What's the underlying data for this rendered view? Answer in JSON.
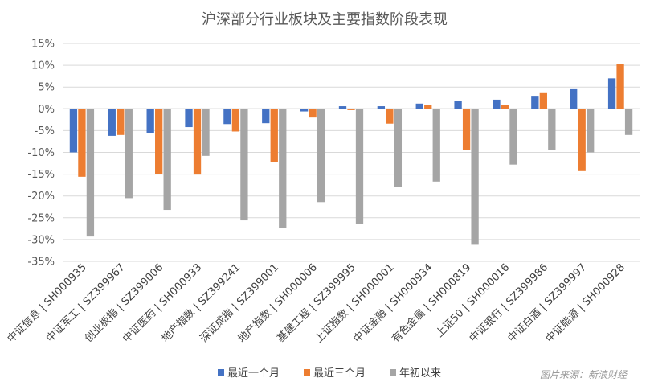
{
  "chart_data": {
    "type": "bar",
    "title": "沪深部分行业板块及主要指数阶段表现",
    "categories": [
      "中证信息 | SH000935",
      "中证军工 | SZ399967",
      "创业板指 | SZ399006",
      "中证医药 | SH000933",
      "地产指数 | SZ399241",
      "深证成指 | SZ399001",
      "地产指数 | SH000006",
      "基建工程 | SZ399995",
      "上证指数 | SH000001",
      "中证金融 | SH000934",
      "有色金属 | SH000819",
      "上证50 | SH000016",
      "中证银行 | SZ399986",
      "中证白酒 | SZ399997",
      "中证能源 | SH000928"
    ],
    "series": [
      {
        "name": "最近一个月",
        "color": "#4472C4",
        "values": [
          -10,
          -6.2,
          -5.6,
          -4.2,
          -3.5,
          -3.3,
          -0.6,
          0.6,
          0.6,
          1.2,
          1.9,
          2.1,
          2.8,
          4.5,
          7.0
        ]
      },
      {
        "name": "最近三个月",
        "color": "#ED7D31",
        "values": [
          -15.6,
          -6.0,
          -14.9,
          -15.1,
          -5.2,
          -12.3,
          -2.0,
          -0.3,
          -3.4,
          0.8,
          -9.5,
          0.8,
          3.6,
          -14.3,
          10.2
        ]
      },
      {
        "name": "年初以来",
        "color": "#A5A5A5",
        "values": [
          -29.3,
          -20.5,
          -23.2,
          -10.8,
          -25.6,
          -27.3,
          -21.4,
          -26.4,
          -17.9,
          -16.7,
          -31.2,
          -12.8,
          -9.5,
          -10.0,
          -6.0
        ]
      }
    ],
    "ylim": [
      -35,
      15
    ],
    "yticks": [
      15,
      10,
      5,
      0,
      -5,
      -10,
      -15,
      -20,
      -25,
      -30,
      -35
    ],
    "ytick_labels": [
      "15%",
      "10%",
      "5%",
      "0%",
      "-5%",
      "-10%",
      "-15%",
      "-20%",
      "-25%",
      "-30%",
      "-35%"
    ],
    "legend_position": "bottom",
    "grid": "horizontal"
  },
  "watermark": "图片来源：新浪财经"
}
